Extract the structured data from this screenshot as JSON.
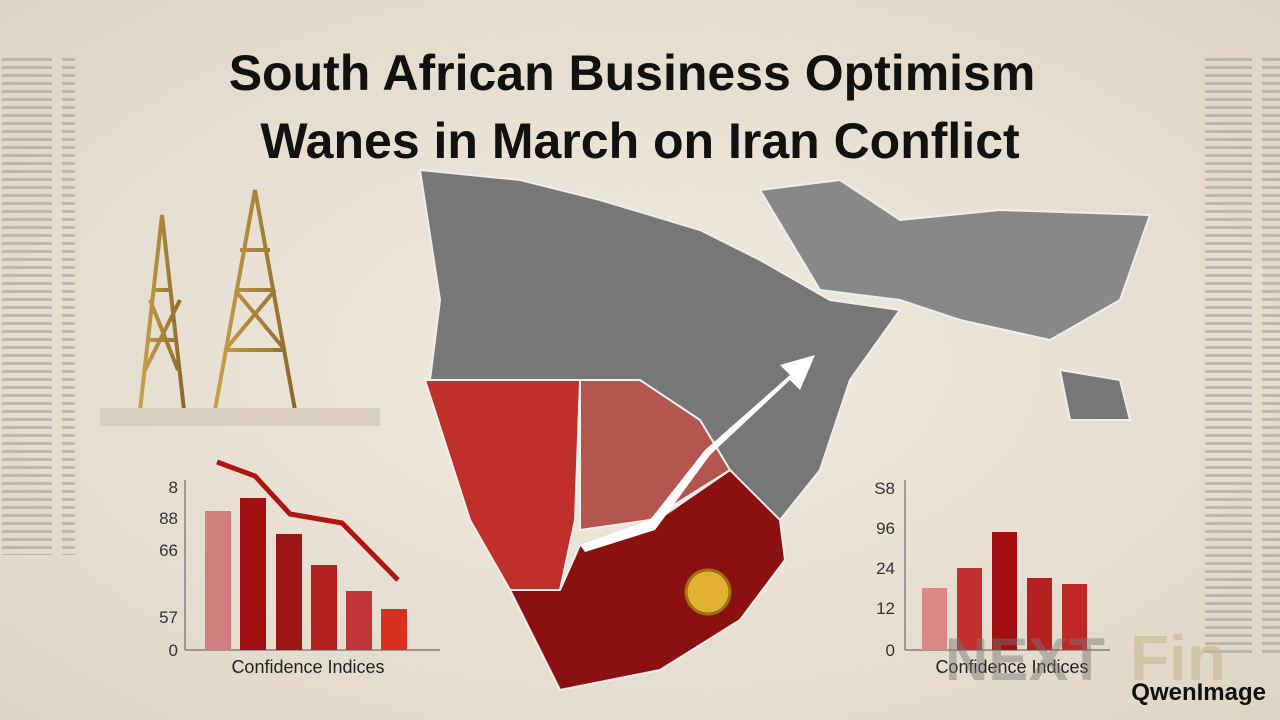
{
  "header": {
    "title_lines": [
      "South African Business Optimism",
      "Wanes in March on Iran Conflict"
    ]
  },
  "left_chart": {
    "axis_labels": [
      "8",
      "88",
      "66",
      "57",
      "0"
    ],
    "caption": "Confidence Indices"
  },
  "right_chart": {
    "axis_labels": [
      "S8",
      "96",
      "24",
      "12",
      "0"
    ],
    "caption": "Confidence Indices"
  },
  "watermarks": {
    "brand_left": "NEXT",
    "brand_right": "Fin",
    "generator": "QwenImage"
  }
}
